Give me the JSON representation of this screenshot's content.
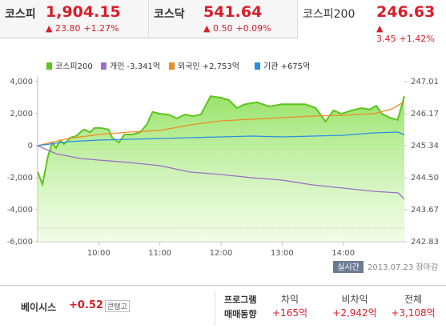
{
  "tabs": [
    {
      "name": "코스피",
      "value": "1,904.15",
      "change": "23.80",
      "pct": "+1.27%"
    },
    {
      "name": "코스닥",
      "value": "541.64",
      "change": "0.50",
      "pct": "+0.09%"
    },
    {
      "name": "코스피200",
      "value": "246.63",
      "change": "3.45",
      "pct": "+1.42%"
    }
  ],
  "chart_data": {
    "type": "line",
    "xlim": [
      9,
      15
    ],
    "xticks": [
      {
        "value": 10,
        "label": "10:00"
      },
      {
        "value": 11,
        "label": "11:00"
      },
      {
        "value": 12,
        "label": "12:00"
      },
      {
        "value": 13,
        "label": "13:00"
      },
      {
        "value": 14,
        "label": "14:00"
      }
    ],
    "ylim": [
      -6000,
      4000
    ],
    "yticks": [
      {
        "value": 4000,
        "label": "4,000"
      },
      {
        "value": 2000,
        "label": "2,000"
      },
      0,
      {
        "value": -2000,
        "label": "-2,000"
      },
      {
        "value": -4000,
        "label": "-4,000"
      },
      {
        "value": -6000,
        "label": "-6,000"
      }
    ],
    "y2lim": [
      242.83,
      247.01
    ],
    "y2ticks": [
      247.01,
      246.17,
      245.34,
      {
        "value": 244.5,
        "label": "244.50"
      },
      243.67,
      242.83
    ],
    "grid": false,
    "series": [
      {
        "name": "코스피200",
        "color": "#5cc41c",
        "axis": "y2",
        "area": true,
        "x": [
          9.0,
          9.08,
          9.17,
          9.24,
          9.3,
          9.37,
          9.43,
          9.54,
          9.63,
          9.7,
          9.76,
          9.86,
          9.93,
          10.03,
          10.16,
          10.22,
          10.33,
          10.42,
          10.55,
          10.68,
          10.79,
          10.88,
          11.01,
          11.14,
          11.28,
          11.41,
          11.54,
          11.67,
          11.83,
          12.0,
          12.13,
          12.26,
          12.39,
          12.59,
          12.79,
          12.99,
          13.18,
          13.38,
          13.55,
          13.71,
          13.84,
          13.97,
          14.14,
          14.3,
          14.43,
          14.54,
          14.63,
          14.76,
          14.89,
          15.0
        ],
        "values": [
          244.65,
          244.33,
          245.07,
          245.42,
          245.28,
          245.48,
          245.38,
          245.55,
          245.59,
          245.69,
          245.76,
          245.69,
          245.8,
          245.8,
          245.76,
          245.55,
          245.42,
          245.63,
          245.63,
          245.69,
          245.9,
          246.22,
          246.17,
          246.15,
          246.05,
          246.15,
          246.11,
          246.15,
          246.63,
          246.59,
          246.53,
          246.32,
          246.42,
          246.47,
          246.36,
          246.42,
          246.42,
          246.42,
          246.32,
          245.97,
          246.26,
          246.17,
          246.26,
          246.32,
          246.28,
          246.38,
          246.17,
          246.07,
          246.01,
          246.63
        ]
      },
      {
        "name": "개인 -3,341억",
        "color": "#9b6fc8",
        "x": [
          9,
          9.3,
          9.7,
          10,
          10.5,
          11,
          11.5,
          12,
          12.5,
          13,
          13.5,
          14,
          14.5,
          14.9,
          15
        ],
        "values": [
          0,
          -500,
          -800,
          -900,
          -1050,
          -1250,
          -1650,
          -1800,
          -2000,
          -2150,
          -2450,
          -2650,
          -2850,
          -2950,
          -3341
        ]
      },
      {
        "name": "외국인 +2,753억",
        "color": "#f08a24",
        "x": [
          9,
          9.5,
          10,
          10.5,
          11,
          11.5,
          12,
          12.5,
          13,
          13.5,
          14,
          14.5,
          14.8,
          15
        ],
        "values": [
          0,
          450,
          700,
          850,
          950,
          1300,
          1550,
          1650,
          1750,
          1850,
          1900,
          2000,
          2300,
          2753
        ]
      },
      {
        "name": "기관 +675억",
        "color": "#2a8ee0",
        "x": [
          9,
          9.5,
          10,
          10.5,
          11,
          11.5,
          12,
          12.5,
          13,
          13.5,
          14,
          14.5,
          14.9,
          15
        ],
        "values": [
          0,
          250,
          350,
          400,
          450,
          500,
          550,
          600,
          550,
          600,
          650,
          800,
          850,
          675
        ]
      }
    ]
  },
  "status": {
    "badge": "실시간",
    "date": "2013.07.23 장마감"
  },
  "footer": {
    "basis_label": "베이시스",
    "basis_value": "+0.52",
    "basis_state": "콘탱고",
    "program_line1": "프로그램",
    "program_line2": "매매동향",
    "columns": [
      {
        "label": "차익",
        "value": "+165억"
      },
      {
        "label": "비차익",
        "value": "+2,942억"
      },
      {
        "label": "전체",
        "value": "+3,108억"
      }
    ]
  }
}
